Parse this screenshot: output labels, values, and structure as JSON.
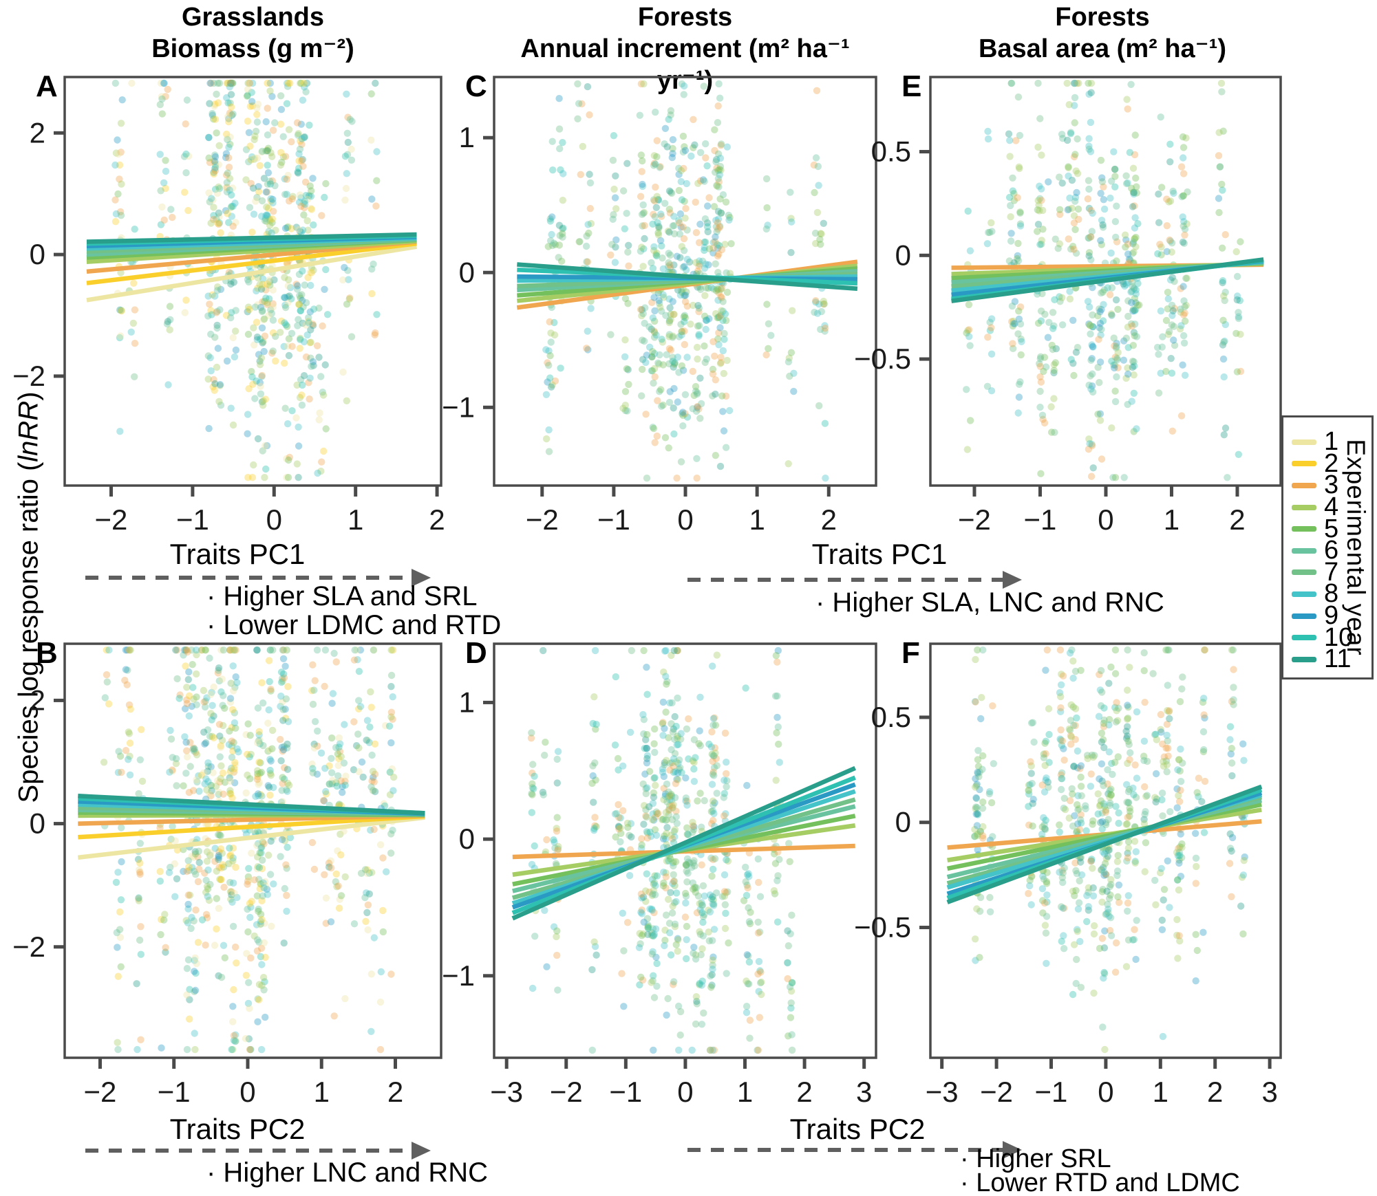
{
  "figure_titles": {
    "columns": [
      {
        "line1": "Grasslands",
        "line2": "Biomass (g m⁻²)"
      },
      {
        "line1": "Forests",
        "line2": "Annual increment (m² ha⁻¹ yr⁻¹)"
      },
      {
        "line1": "Forests",
        "line2": "Basal area (m² ha⁻¹)"
      }
    ]
  },
  "ylabel": {
    "pre": "Species log response ratio (",
    "math": "lnRR",
    "post": ")"
  },
  "legend": {
    "title": "Experimental year",
    "items": [
      {
        "year": "1",
        "color": "#EDE6A3"
      },
      {
        "year": "2",
        "color": "#FBCF2B"
      },
      {
        "year": "3",
        "color": "#F0A64F"
      },
      {
        "year": "4",
        "color": "#A5CD64"
      },
      {
        "year": "5",
        "color": "#73C05C"
      },
      {
        "year": "6",
        "color": "#69C39E"
      },
      {
        "year": "7",
        "color": "#72C189"
      },
      {
        "year": "8",
        "color": "#44C3C9"
      },
      {
        "year": "9",
        "color": "#2A9AC4"
      },
      {
        "year": "10",
        "color": "#2EC1B1"
      },
      {
        "year": "11",
        "color": "#289E8B"
      }
    ]
  },
  "axes_annotations": {
    "g1": {
      "label": "Traits PC1",
      "bullets": [
        "· Higher SLA and SRL",
        "· Lower LDMC and RTD"
      ]
    },
    "g2": {
      "label": "Traits PC1",
      "bullets": [
        "· Higher SLA, LNC and RNC"
      ]
    },
    "g3": {
      "label": "Traits PC2",
      "bullets": [
        "· Higher LNC and RNC"
      ]
    },
    "g4": {
      "label": "Traits PC2",
      "bullets": [
        "· Higher SRL",
        "· Lower RTD and LDMC"
      ]
    }
  },
  "chart_data": [
    {
      "id": "A",
      "label": "A",
      "type": "scatter",
      "row": 0,
      "col": 0,
      "x_variable": "Traits PC1",
      "y_variable": "Species log response ratio (lnRR)",
      "response": "Grasslands Biomass (g m⁻²)",
      "xlim": [
        -2.57,
        2.05
      ],
      "ylim": [
        -3.8,
        2.92
      ],
      "xticks": {
        "values": [
          -2,
          -1,
          0,
          1,
          2
        ],
        "labels": [
          "−2",
          "−1",
          "0",
          "1",
          "2"
        ]
      },
      "yticks": {
        "values": [
          2,
          0,
          -2
        ],
        "labels": [
          "2",
          "0",
          "−2"
        ]
      },
      "lines": [
        {
          "year": 1,
          "x0": -2.3,
          "y0": -0.75,
          "x1": 1.75,
          "y1": 0.13
        },
        {
          "year": 2,
          "x0": -2.3,
          "y0": -0.47,
          "x1": 1.75,
          "y1": 0.18
        },
        {
          "year": 3,
          "x0": -2.3,
          "y0": -0.28,
          "x1": 1.75,
          "y1": 0.21
        },
        {
          "year": 4,
          "x0": -2.3,
          "y0": -0.12,
          "x1": 1.75,
          "y1": 0.22
        },
        {
          "year": 5,
          "x0": -2.3,
          "y0": -0.05,
          "x1": 1.75,
          "y1": 0.24
        },
        {
          "year": 6,
          "x0": -2.3,
          "y0": 0.0,
          "x1": 1.75,
          "y1": 0.25
        },
        {
          "year": 7,
          "x0": -2.3,
          "y0": 0.05,
          "x1": 1.75,
          "y1": 0.26
        },
        {
          "year": 8,
          "x0": -2.3,
          "y0": 0.1,
          "x1": 1.75,
          "y1": 0.27
        },
        {
          "year": 9,
          "x0": -2.3,
          "y0": 0.14,
          "x1": 1.75,
          "y1": 0.29
        },
        {
          "year": 10,
          "x0": -2.3,
          "y0": 0.18,
          "x1": 1.75,
          "y1": 0.31
        },
        {
          "year": 11,
          "x0": -2.3,
          "y0": 0.21,
          "x1": 1.75,
          "y1": 0.33
        }
      ],
      "scatter": {
        "n": 760,
        "seed": 11,
        "xspan": [
          -2.35,
          1.95
        ],
        "mu": 0.1,
        "sigma": 1.5,
        "year_pool": [
          1,
          1,
          2,
          2,
          3,
          3,
          4,
          4,
          5,
          6,
          6,
          7,
          8,
          8,
          9,
          10,
          11
        ]
      }
    },
    {
      "id": "C",
      "label": "C",
      "type": "scatter",
      "row": 0,
      "col": 1,
      "x_variable": "Traits PC1",
      "y_variable": "Species log response ratio (lnRR)",
      "response": "Forests Annual increment (m² ha⁻¹ yr⁻¹)",
      "xlim": [
        -2.67,
        2.66
      ],
      "ylim": [
        -1.58,
        1.45
      ],
      "xticks": {
        "values": [
          -2,
          -1,
          0,
          1,
          2
        ],
        "labels": [
          "−2",
          "−1",
          "0",
          "1",
          "2"
        ]
      },
      "yticks": {
        "values": [
          1,
          0,
          -1
        ],
        "labels": [
          "1",
          "0",
          "−1"
        ]
      },
      "lines": [
        {
          "year": 3,
          "x0": -2.35,
          "y0": -0.26,
          "x1": 2.4,
          "y1": 0.08
        },
        {
          "year": 4,
          "x0": -2.35,
          "y0": -0.21,
          "x1": 2.4,
          "y1": 0.05
        },
        {
          "year": 5,
          "x0": -2.35,
          "y0": -0.17,
          "x1": 2.4,
          "y1": 0.03
        },
        {
          "year": 6,
          "x0": -2.35,
          "y0": -0.13,
          "x1": 2.4,
          "y1": 0.01
        },
        {
          "year": 7,
          "x0": -2.35,
          "y0": -0.1,
          "x1": 2.4,
          "y1": -0.01
        },
        {
          "year": 8,
          "x0": -2.35,
          "y0": -0.06,
          "x1": 2.4,
          "y1": -0.03
        },
        {
          "year": 9,
          "x0": -2.35,
          "y0": -0.03,
          "x1": 2.4,
          "y1": -0.05
        },
        {
          "year": 10,
          "x0": -2.35,
          "y0": 0.02,
          "x1": 2.4,
          "y1": -0.08
        },
        {
          "year": 11,
          "x0": -2.35,
          "y0": 0.06,
          "x1": 2.4,
          "y1": -0.12
        }
      ],
      "scatter": {
        "n": 660,
        "seed": 23,
        "xspan": [
          -2.4,
          2.45
        ],
        "mu": -0.05,
        "sigma": 0.62,
        "year_pool": [
          3,
          3,
          4,
          4,
          5,
          5,
          6,
          6,
          7,
          7,
          8,
          8,
          9,
          10,
          11
        ]
      }
    },
    {
      "id": "E",
      "label": "E",
      "type": "scatter",
      "row": 0,
      "col": 2,
      "x_variable": "Traits PC1",
      "y_variable": "Species log response ratio (lnRR)",
      "response": "Forests Basal area (m² ha⁻¹)",
      "xlim": [
        -2.67,
        2.66
      ],
      "ylim": [
        -1.11,
        0.86
      ],
      "xticks": {
        "values": [
          -2,
          -1,
          0,
          1,
          2
        ],
        "labels": [
          "−2",
          "−1",
          "0",
          "1",
          "2"
        ]
      },
      "yticks": {
        "values": [
          0.5,
          0,
          -0.5
        ],
        "labels": [
          "0.5",
          "0",
          "−0.5"
        ]
      },
      "lines": [
        {
          "year": 3,
          "x0": -2.35,
          "y0": -0.06,
          "x1": 2.4,
          "y1": -0.045
        },
        {
          "year": 4,
          "x0": -2.35,
          "y0": -0.09,
          "x1": 2.4,
          "y1": -0.04
        },
        {
          "year": 5,
          "x0": -2.35,
          "y0": -0.11,
          "x1": 2.4,
          "y1": -0.038
        },
        {
          "year": 6,
          "x0": -2.35,
          "y0": -0.13,
          "x1": 2.4,
          "y1": -0.035
        },
        {
          "year": 7,
          "x0": -2.35,
          "y0": -0.15,
          "x1": 2.4,
          "y1": -0.032
        },
        {
          "year": 8,
          "x0": -2.35,
          "y0": -0.17,
          "x1": 2.4,
          "y1": -0.03
        },
        {
          "year": 9,
          "x0": -2.35,
          "y0": -0.19,
          "x1": 2.4,
          "y1": -0.027
        },
        {
          "year": 10,
          "x0": -2.35,
          "y0": -0.21,
          "x1": 2.4,
          "y1": -0.024
        },
        {
          "year": 11,
          "x0": -2.35,
          "y0": -0.22,
          "x1": 2.4,
          "y1": -0.02
        }
      ],
      "scatter": {
        "n": 600,
        "seed": 37,
        "xspan": [
          -2.4,
          2.45
        ],
        "mu": -0.02,
        "sigma": 0.4,
        "year_pool": [
          3,
          3,
          4,
          4,
          5,
          5,
          6,
          6,
          7,
          7,
          8,
          8,
          9,
          10,
          11
        ]
      }
    },
    {
      "id": "B",
      "label": "B",
      "type": "scatter",
      "row": 1,
      "col": 0,
      "x_variable": "Traits PC2",
      "y_variable": "Species log response ratio (lnRR)",
      "response": "Grasslands Biomass (g m⁻²)",
      "xlim": [
        -2.48,
        2.62
      ],
      "ylim": [
        -3.8,
        2.92
      ],
      "xticks": {
        "values": [
          -2,
          -1,
          0,
          1,
          2
        ],
        "labels": [
          "−2",
          "−1",
          "0",
          "1",
          "2"
        ]
      },
      "yticks": {
        "values": [
          2,
          0,
          -2
        ],
        "labels": [
          "2",
          "0",
          "−2"
        ]
      },
      "lines": [
        {
          "year": 1,
          "x0": -2.3,
          "y0": -0.55,
          "x1": 2.4,
          "y1": 0.1
        },
        {
          "year": 2,
          "x0": -2.3,
          "y0": -0.22,
          "x1": 2.4,
          "y1": 0.12
        },
        {
          "year": 3,
          "x0": -2.3,
          "y0": 0.0,
          "x1": 2.4,
          "y1": 0.13
        },
        {
          "year": 4,
          "x0": -2.3,
          "y0": 0.13,
          "x1": 2.4,
          "y1": 0.14
        },
        {
          "year": 5,
          "x0": -2.3,
          "y0": 0.18,
          "x1": 2.4,
          "y1": 0.14
        },
        {
          "year": 6,
          "x0": -2.3,
          "y0": 0.22,
          "x1": 2.4,
          "y1": 0.15
        },
        {
          "year": 7,
          "x0": -2.3,
          "y0": 0.26,
          "x1": 2.4,
          "y1": 0.15
        },
        {
          "year": 8,
          "x0": -2.3,
          "y0": 0.31,
          "x1": 2.4,
          "y1": 0.16
        },
        {
          "year": 9,
          "x0": -2.3,
          "y0": 0.36,
          "x1": 2.4,
          "y1": 0.16
        },
        {
          "year": 10,
          "x0": -2.3,
          "y0": 0.41,
          "x1": 2.4,
          "y1": 0.17
        },
        {
          "year": 11,
          "x0": -2.3,
          "y0": 0.45,
          "x1": 2.4,
          "y1": 0.17
        }
      ],
      "scatter": {
        "n": 860,
        "seed": 53,
        "xspan": [
          -2.35,
          2.45
        ],
        "mu": 0.1,
        "sigma": 1.5,
        "year_pool": [
          1,
          1,
          2,
          2,
          3,
          3,
          4,
          4,
          5,
          6,
          6,
          7,
          8,
          8,
          9,
          10,
          11
        ]
      }
    },
    {
      "id": "D",
      "label": "D",
      "type": "scatter",
      "row": 1,
      "col": 1,
      "x_variable": "Traits PC2",
      "y_variable": "Species log response ratio (lnRR)",
      "response": "Forests Annual increment (m² ha⁻¹ yr⁻¹)",
      "xlim": [
        -3.21,
        3.2
      ],
      "ylim": [
        -1.6,
        1.43
      ],
      "xticks": {
        "values": [
          -3,
          -2,
          -1,
          0,
          1,
          2,
          3
        ],
        "labels": [
          "−3",
          "−2",
          "−1",
          "0",
          "1",
          "2",
          "3"
        ]
      },
      "yticks": {
        "values": [
          1,
          0,
          -1
        ],
        "labels": [
          "1",
          "0",
          "−1"
        ]
      },
      "lines": [
        {
          "year": 3,
          "x0": -2.9,
          "y0": -0.13,
          "x1": 2.85,
          "y1": -0.05
        },
        {
          "year": 4,
          "x0": -2.9,
          "y0": -0.26,
          "x1": 2.85,
          "y1": 0.1
        },
        {
          "year": 5,
          "x0": -2.9,
          "y0": -0.33,
          "x1": 2.85,
          "y1": 0.17
        },
        {
          "year": 6,
          "x0": -2.9,
          "y0": -0.38,
          "x1": 2.85,
          "y1": 0.24
        },
        {
          "year": 7,
          "x0": -2.9,
          "y0": -0.43,
          "x1": 2.85,
          "y1": 0.29
        },
        {
          "year": 8,
          "x0": -2.9,
          "y0": -0.47,
          "x1": 2.85,
          "y1": 0.35
        },
        {
          "year": 9,
          "x0": -2.9,
          "y0": -0.5,
          "x1": 2.85,
          "y1": 0.4
        },
        {
          "year": 10,
          "x0": -2.9,
          "y0": -0.54,
          "x1": 2.85,
          "y1": 0.45
        },
        {
          "year": 11,
          "x0": -2.9,
          "y0": -0.58,
          "x1": 2.85,
          "y1": 0.52
        }
      ],
      "scatter": {
        "n": 680,
        "seed": 67,
        "xspan": [
          -3.0,
          2.9
        ],
        "mu": -0.05,
        "sigma": 0.62,
        "year_pool": [
          3,
          3,
          4,
          4,
          5,
          5,
          6,
          6,
          7,
          7,
          8,
          8,
          9,
          10,
          11
        ]
      }
    },
    {
      "id": "F",
      "label": "F",
      "type": "scatter",
      "row": 1,
      "col": 2,
      "x_variable": "Traits PC2",
      "y_variable": "Species log response ratio (lnRR)",
      "response": "Forests Basal area (m² ha⁻¹)",
      "xlim": [
        -3.21,
        3.2
      ],
      "ylim": [
        -1.12,
        0.85
      ],
      "xticks": {
        "values": [
          -3,
          -2,
          -1,
          0,
          1,
          2,
          3
        ],
        "labels": [
          "−3",
          "−2",
          "−1",
          "0",
          "1",
          "2",
          "3"
        ]
      },
      "yticks": {
        "values": [
          0.5,
          0,
          -0.5
        ],
        "labels": [
          "0.5",
          "0",
          "−0.5"
        ]
      },
      "lines": [
        {
          "year": 3,
          "x0": -2.9,
          "y0": -0.12,
          "x1": 2.85,
          "y1": 0.005
        },
        {
          "year": 4,
          "x0": -2.9,
          "y0": -0.18,
          "x1": 2.85,
          "y1": 0.06
        },
        {
          "year": 5,
          "x0": -2.9,
          "y0": -0.22,
          "x1": 2.85,
          "y1": 0.085
        },
        {
          "year": 6,
          "x0": -2.9,
          "y0": -0.26,
          "x1": 2.85,
          "y1": 0.105
        },
        {
          "year": 7,
          "x0": -2.9,
          "y0": -0.29,
          "x1": 2.85,
          "y1": 0.12
        },
        {
          "year": 8,
          "x0": -2.9,
          "y0": -0.31,
          "x1": 2.85,
          "y1": 0.13
        },
        {
          "year": 9,
          "x0": -2.9,
          "y0": -0.34,
          "x1": 2.85,
          "y1": 0.14
        },
        {
          "year": 10,
          "x0": -2.9,
          "y0": -0.36,
          "x1": 2.85,
          "y1": 0.155
        },
        {
          "year": 11,
          "x0": -2.9,
          "y0": -0.38,
          "x1": 2.85,
          "y1": 0.17
        }
      ],
      "scatter": {
        "n": 640,
        "seed": 79,
        "xspan": [
          -3.0,
          2.9
        ],
        "mu": -0.05,
        "sigma": 0.4,
        "year_pool": [
          3,
          3,
          4,
          4,
          5,
          5,
          6,
          6,
          7,
          7,
          8,
          8,
          9,
          10,
          11
        ]
      }
    }
  ]
}
